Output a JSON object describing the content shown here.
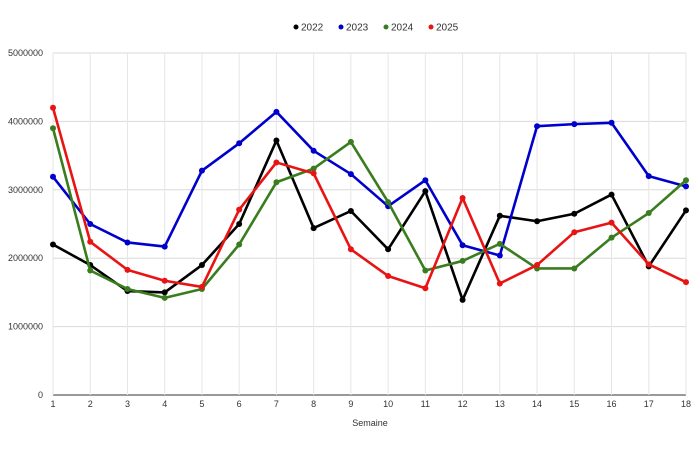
{
  "chart_data": {
    "type": "line",
    "title": "",
    "xlabel": "Semaine",
    "ylabel": "",
    "x": [
      1,
      2,
      3,
      4,
      5,
      6,
      7,
      8,
      9,
      10,
      11,
      12,
      13,
      14,
      15,
      16,
      17,
      18
    ],
    "ylim": [
      0,
      5000000
    ],
    "yticks": [
      0,
      1000000,
      2000000,
      3000000,
      4000000,
      5000000
    ],
    "grid": true,
    "legend_position": "top-center",
    "series": [
      {
        "name": "2022",
        "color": "#000000",
        "values": [
          2200000,
          1900000,
          1520000,
          1500000,
          1900000,
          2500000,
          3720000,
          2440000,
          2690000,
          2130000,
          2980000,
          1390000,
          2620000,
          2540000,
          2650000,
          2930000,
          1880000,
          2700000
        ]
      },
      {
        "name": "2023",
        "color": "#0000cc",
        "values": [
          3190000,
          2500000,
          2230000,
          2170000,
          3280000,
          3680000,
          4140000,
          3570000,
          3230000,
          2760000,
          3140000,
          2190000,
          2040000,
          3930000,
          3960000,
          3980000,
          3200000,
          3050000
        ]
      },
      {
        "name": "2024",
        "color": "#3a7d1e",
        "values": [
          3900000,
          1820000,
          1550000,
          1420000,
          1550000,
          2200000,
          3110000,
          3310000,
          3700000,
          2820000,
          1820000,
          1960000,
          2210000,
          1850000,
          1850000,
          2300000,
          2660000,
          3140000
        ]
      },
      {
        "name": "2025",
        "color": "#e81414",
        "values": [
          4200000,
          2240000,
          1830000,
          1670000,
          1580000,
          2710000,
          3400000,
          3240000,
          2130000,
          1740000,
          1560000,
          2880000,
          1630000,
          1900000,
          2380000,
          2520000,
          1910000,
          1650000
        ]
      }
    ]
  }
}
